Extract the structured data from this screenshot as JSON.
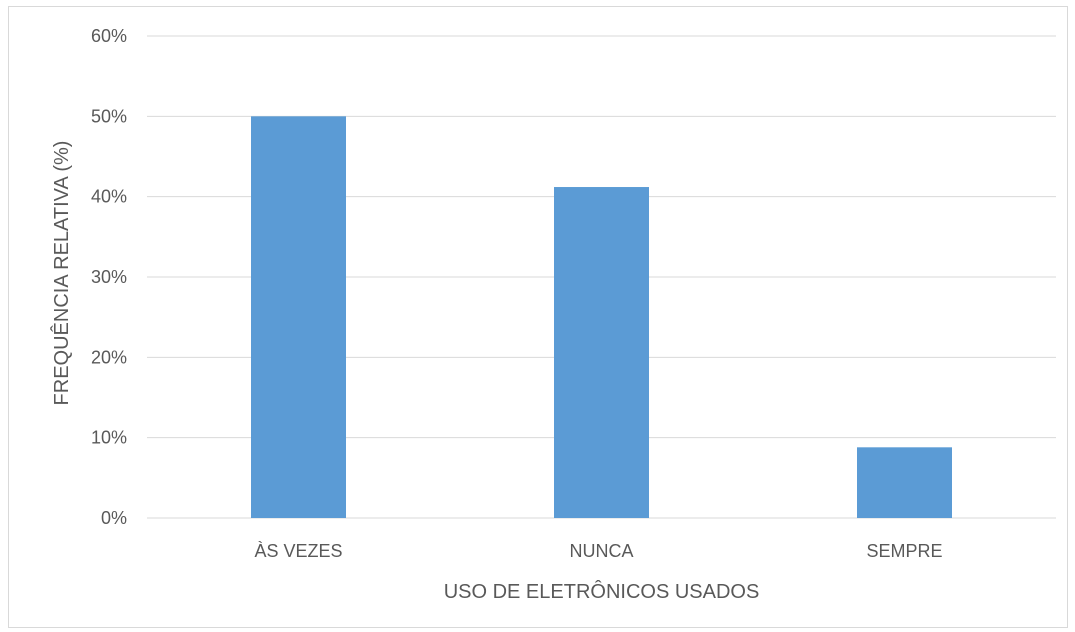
{
  "chart_data": {
    "type": "bar",
    "categories": [
      "ÀS VEZES",
      "NUNCA",
      "SEMPRE"
    ],
    "values": [
      50,
      41.2,
      8.8
    ],
    "title": "",
    "xlabel": "USO DE ELETRÔNICOS USADOS",
    "ylabel": "FREQUÊNCIA RELATIVA (%)",
    "ylim": [
      0,
      60
    ],
    "yticks": [
      0,
      10,
      20,
      30,
      40,
      50,
      60
    ],
    "ytick_labels": [
      "0%",
      "10%",
      "20%",
      "30%",
      "40%",
      "50%",
      "60%"
    ],
    "grid": true,
    "legend": "none",
    "bar_color": "#5b9bd5"
  }
}
